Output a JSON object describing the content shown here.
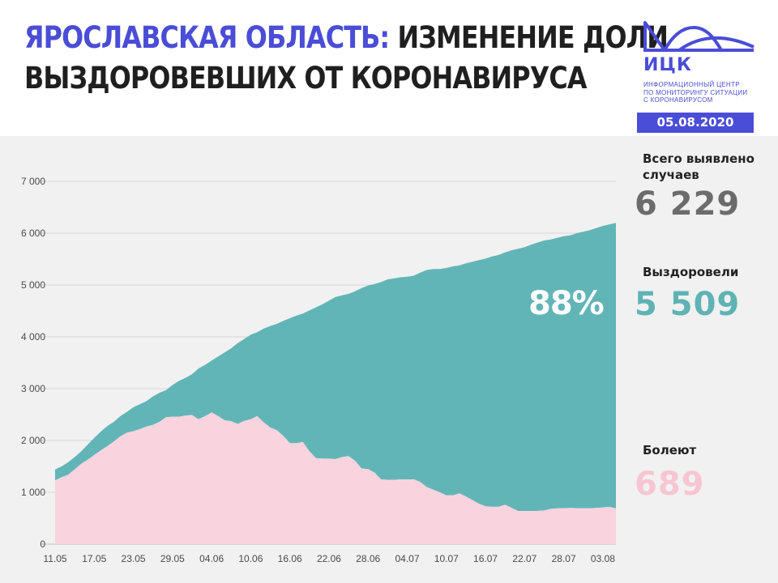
{
  "header": {
    "title_accent": "ЯРОСЛАВСКАЯ ОБЛАСТЬ:",
    "title_line1_rest": " ИЗМЕНЕНИЕ ДОЛИ",
    "title_line2": "ВЫЗДОРОВЕВШИХ ОТ КОРОНАВИРУСА"
  },
  "logo": {
    "abbr": "ИЦК",
    "line1": "ИНФОРМАЦИОННЫЙ ЦЕНТР",
    "line2": "ПО МОНИТОРИНГУ СИТУАЦИИ",
    "line3": "С КОРОНАВИРУСОМ"
  },
  "date": "05.08.2020",
  "stats": {
    "total_label_line1": "Всего выявлено",
    "total_label_line2": "случаев",
    "total_value": "6 229",
    "recovered_label": "Выздоровели",
    "recovered_value": "5 509",
    "recovered_share": "88%",
    "sick_label": "Болеют",
    "sick_value": "689"
  },
  "colors": {
    "accent": "#4a4dd6",
    "recovered": "#62b5b7",
    "sick": "#f9d3de",
    "total_text": "#6c6c6c",
    "recovered_text": "#5fb3b4",
    "sick_text": "#f7c6d2"
  },
  "chart_data": {
    "type": "area",
    "stacked": true,
    "ylim": [
      0,
      7000
    ],
    "yticks": [
      0,
      1000,
      2000,
      3000,
      4000,
      5000,
      6000,
      7000
    ],
    "ytick_labels": [
      "0",
      "1 000",
      "2 000",
      "3 000",
      "4 000",
      "5 000",
      "6 000",
      "7 000"
    ],
    "xtick_labels": [
      "11.05",
      "17.05",
      "23.05",
      "29.05",
      "04.06",
      "10.06",
      "16.06",
      "22.06",
      "28.06",
      "04.07",
      "10.07",
      "16.07",
      "22.07",
      "28.07",
      "03.08"
    ],
    "xtick_days": [
      0,
      6,
      12,
      18,
      24,
      30,
      36,
      42,
      48,
      54,
      60,
      66,
      72,
      78,
      84
    ],
    "x_days": [
      0,
      1,
      2,
      3,
      4,
      5,
      6,
      7,
      8,
      9,
      10,
      11,
      12,
      13,
      14,
      15,
      16,
      17,
      18,
      19,
      20,
      21,
      22,
      23,
      24,
      25,
      26,
      27,
      28,
      29,
      30,
      31,
      32,
      33,
      34,
      35,
      36,
      37,
      38,
      39,
      40,
      41,
      42,
      43,
      44,
      45,
      46,
      47,
      48,
      49,
      50,
      51,
      52,
      53,
      54,
      55,
      56,
      57,
      58,
      59,
      60,
      61,
      62,
      63,
      64,
      65,
      66,
      67,
      68,
      69,
      70,
      71,
      72,
      73,
      74,
      75,
      76,
      77,
      78,
      79,
      80,
      81,
      82,
      83,
      84,
      85,
      86
    ],
    "series": [
      {
        "name": "Болеют",
        "values": [
          1230,
          1290,
          1340,
          1440,
          1550,
          1630,
          1720,
          1810,
          1890,
          1980,
          2080,
          2150,
          2180,
          2220,
          2270,
          2300,
          2360,
          2450,
          2460,
          2460,
          2480,
          2490,
          2410,
          2470,
          2540,
          2470,
          2390,
          2370,
          2320,
          2380,
          2410,
          2470,
          2350,
          2250,
          2200,
          2090,
          1950,
          1950,
          1970,
          1790,
          1660,
          1650,
          1650,
          1640,
          1680,
          1700,
          1610,
          1460,
          1450,
          1380,
          1250,
          1240,
          1240,
          1250,
          1250,
          1250,
          1200,
          1100,
          1050,
          1000,
          940,
          940,
          980,
          920,
          850,
          780,
          730,
          720,
          720,
          760,
          700,
          640,
          640,
          640,
          640,
          650,
          680,
          690,
          690,
          700,
          690,
          690,
          690,
          700,
          710,
          720,
          689
        ]
      },
      {
        "name": "Выздоровели",
        "values": [
          210,
          210,
          240,
          240,
          240,
          290,
          330,
          360,
          390,
          380,
          390,
          400,
          460,
          480,
          490,
          550,
          560,
          520,
          610,
          690,
          730,
          790,
          980,
          990,
          1000,
          1150,
          1310,
          1410,
          1560,
          1580,
          1630,
          1620,
          1810,
          1960,
          2050,
          2220,
          2410,
          2460,
          2480,
          2720,
          2910,
          2980,
          3050,
          3130,
          3120,
          3130,
          3270,
          3480,
          3540,
          3640,
          3810,
          3870,
          3890,
          3900,
          3910,
          3930,
          4040,
          4190,
          4260,
          4310,
          4390,
          4420,
          4400,
          4500,
          4600,
          4700,
          4780,
          4830,
          4860,
          4870,
          4970,
          5060,
          5090,
          5140,
          5180,
          5210,
          5200,
          5220,
          5250,
          5260,
          5310,
          5340,
          5370,
          5400,
          5430,
          5450,
          5509
        ]
      }
    ],
    "grid": true,
    "legend": "none"
  }
}
